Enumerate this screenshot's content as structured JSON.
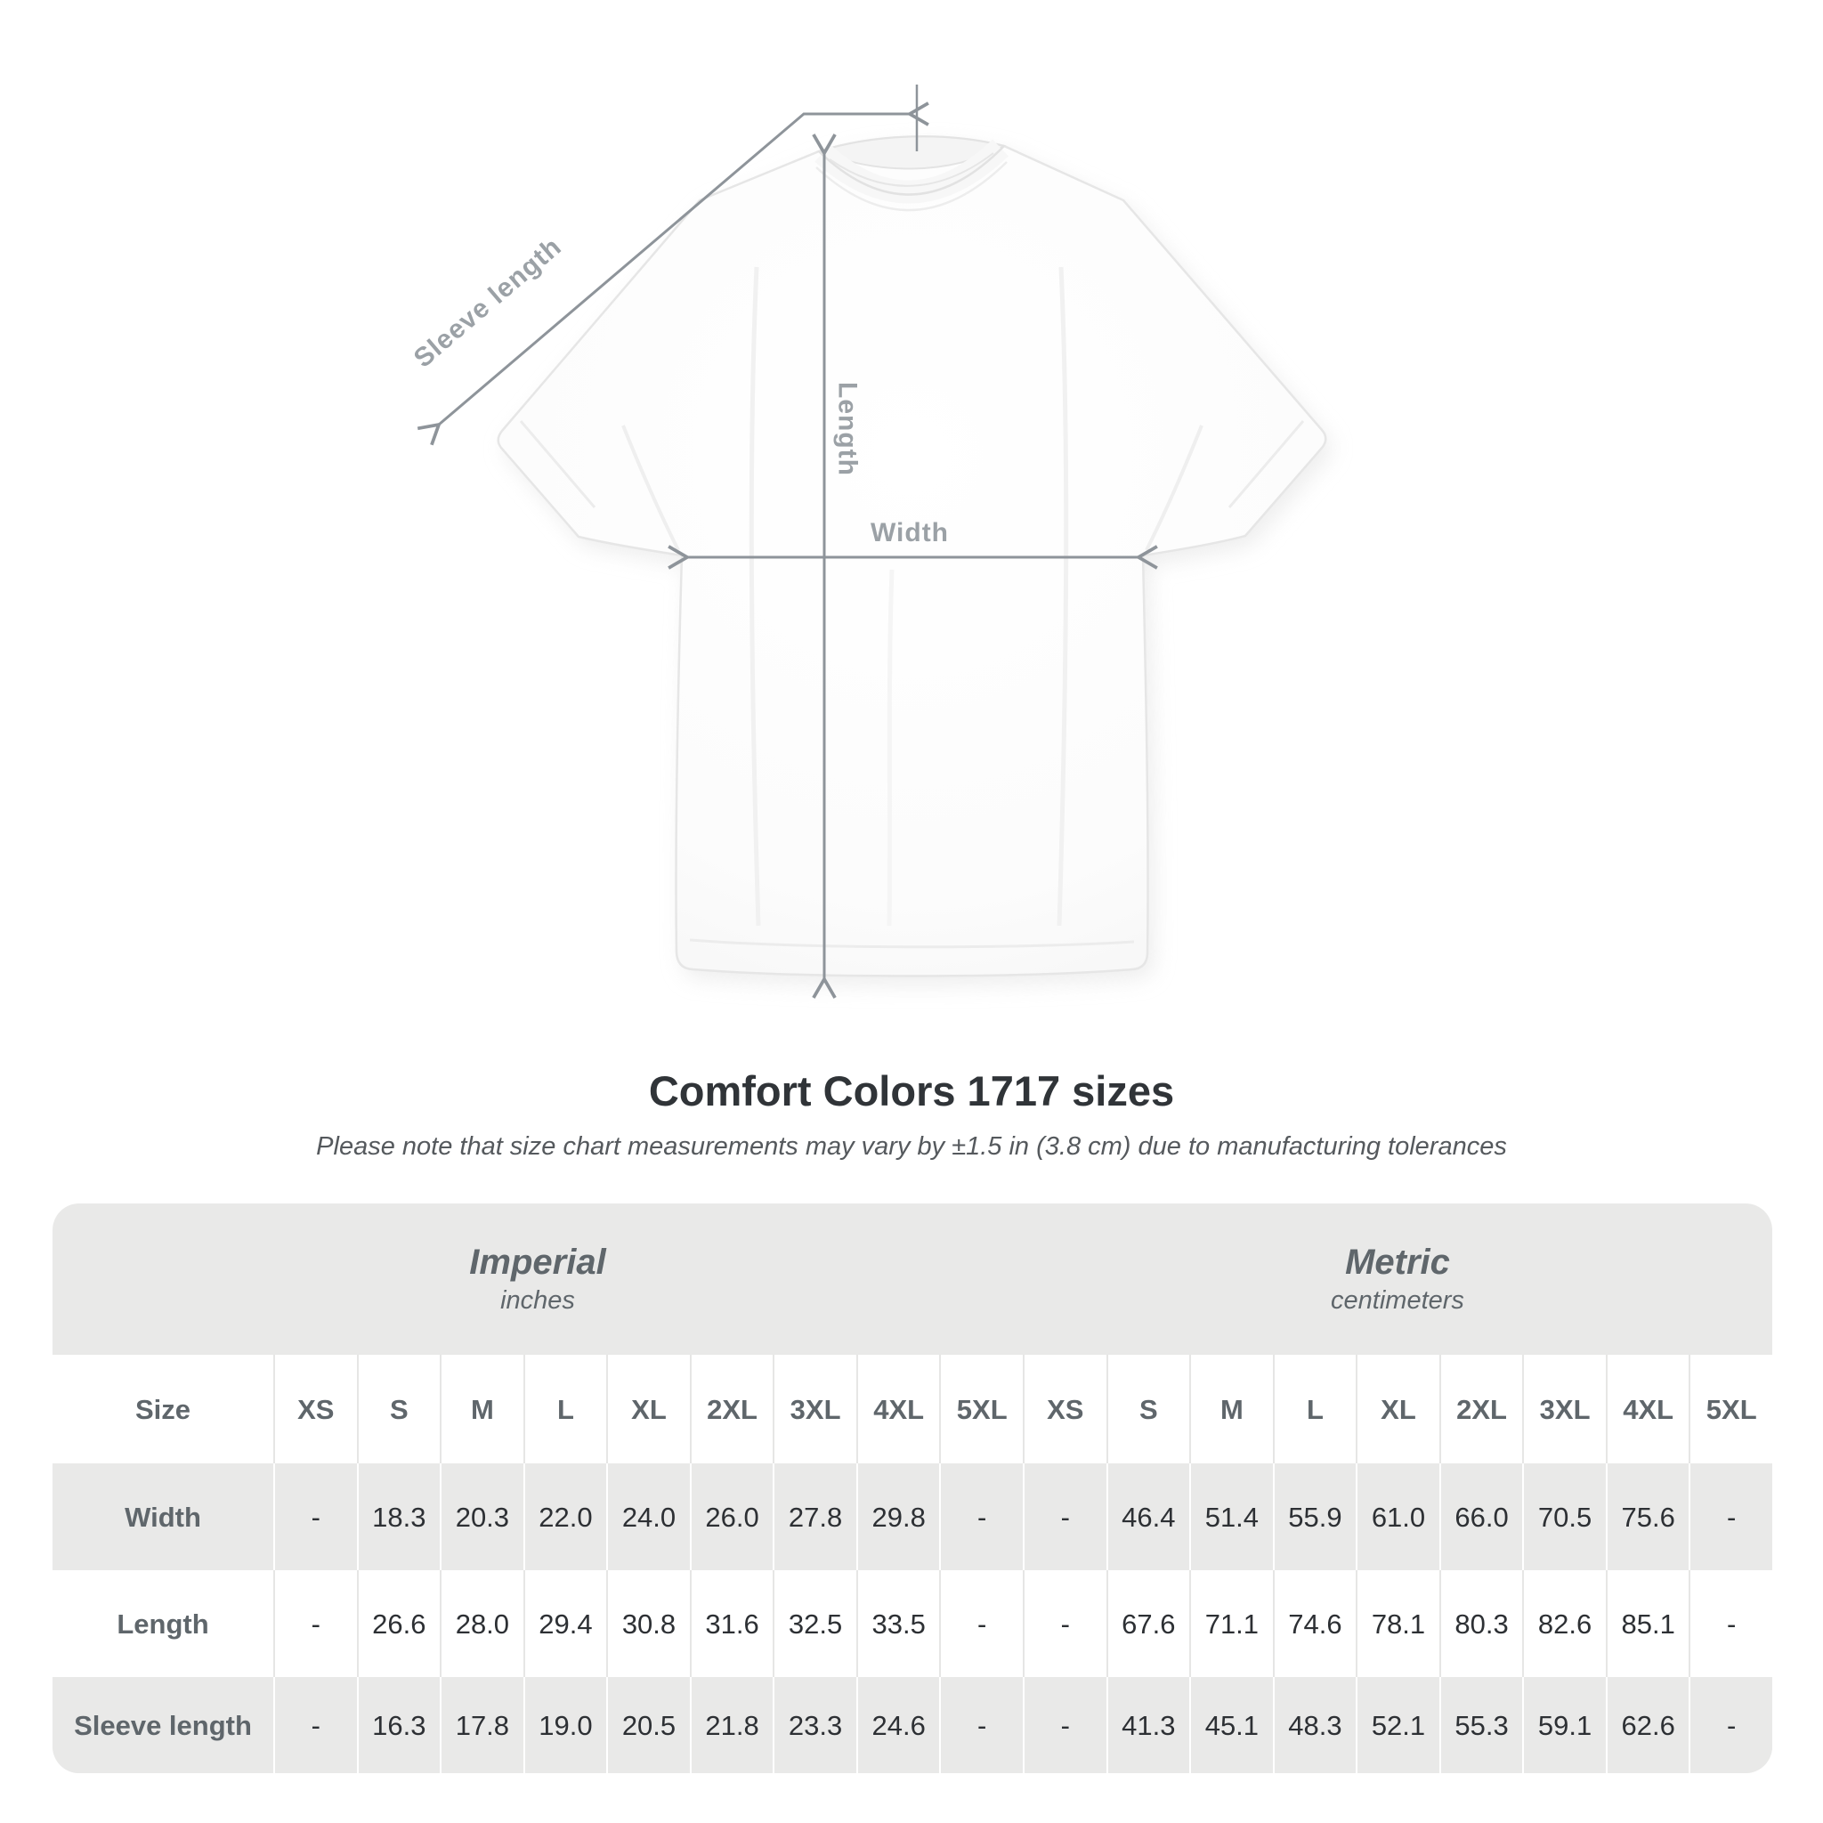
{
  "diagram": {
    "sleeve_label": "Sleeve length",
    "length_label": "Length",
    "width_label": "Width"
  },
  "title": "Comfort Colors 1717 sizes",
  "note": "Please note that size chart measurements may vary by ±1.5 in (3.8 cm) due to manufacturing tolerances",
  "table": {
    "groups": [
      {
        "name": "Imperial",
        "unit": "inches"
      },
      {
        "name": "Metric",
        "unit": "centimeters"
      }
    ],
    "size_label": "Size",
    "sizes": [
      "XS",
      "S",
      "M",
      "L",
      "XL",
      "2XL",
      "3XL",
      "4XL",
      "5XL"
    ],
    "rows": [
      {
        "label": "Width",
        "imperial": [
          "-",
          "18.3",
          "20.3",
          "22.0",
          "24.0",
          "26.0",
          "27.8",
          "29.8",
          "-"
        ],
        "metric": [
          "-",
          "46.4",
          "51.4",
          "55.9",
          "61.0",
          "66.0",
          "70.5",
          "75.6",
          "-"
        ]
      },
      {
        "label": "Length",
        "imperial": [
          "-",
          "26.6",
          "28.0",
          "29.4",
          "30.8",
          "31.6",
          "32.5",
          "33.5",
          "-"
        ],
        "metric": [
          "-",
          "67.6",
          "71.1",
          "74.6",
          "78.1",
          "80.3",
          "82.6",
          "85.1",
          "-"
        ]
      },
      {
        "label": "Sleeve length",
        "imperial": [
          "-",
          "16.3",
          "17.8",
          "19.0",
          "20.5",
          "21.8",
          "23.3",
          "24.6",
          "-"
        ],
        "metric": [
          "-",
          "41.3",
          "45.1",
          "48.3",
          "52.1",
          "55.3",
          "59.1",
          "62.6",
          "-"
        ]
      }
    ]
  },
  "colors": {
    "table_band_gray": "#e9e9e8",
    "header_text_gray": "#5f666b",
    "value_text": "#2d3034",
    "diagram_label_gray": "#9ba1a6",
    "dimension_line_gray": "#8e949a",
    "title_text": "#303438"
  }
}
